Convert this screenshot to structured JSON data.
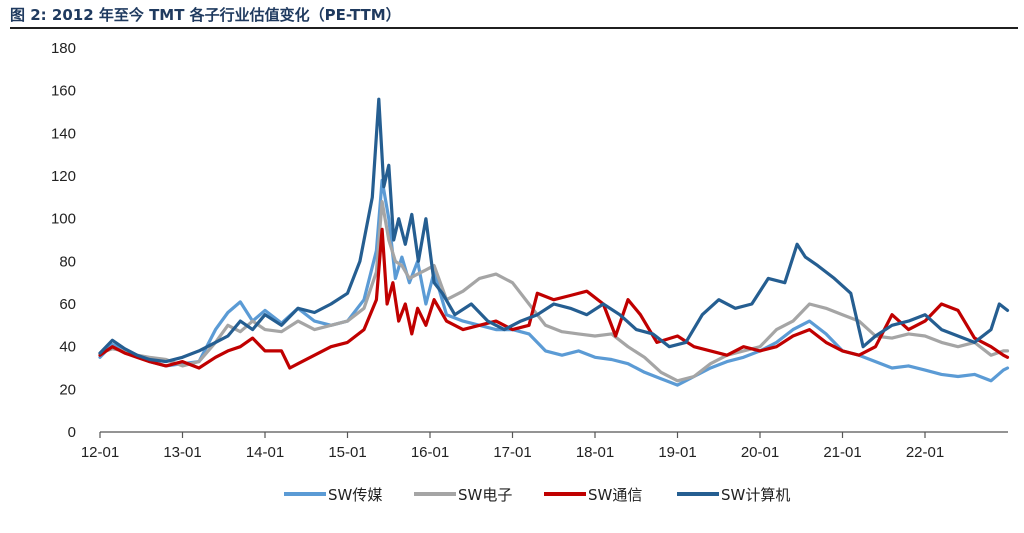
{
  "figure": {
    "title": "图 2:  2012 年至今 TMT 各子行业估值变化（PE-TTM）"
  },
  "chart_data": {
    "type": "line",
    "title": "",
    "xlabel": "",
    "ylabel": "",
    "ylim": [
      0,
      180
    ],
    "y_ticks": [
      0,
      20,
      40,
      60,
      80,
      100,
      120,
      140,
      160,
      180
    ],
    "x_ticks": [
      "12-01",
      "13-01",
      "14-01",
      "15-01",
      "16-01",
      "17-01",
      "18-01",
      "19-01",
      "20-01",
      "21-01",
      "22-01"
    ],
    "x_unit": "years since 12-01",
    "x_range": [
      0,
      11.05
    ],
    "grid": false,
    "legend_position": "bottom",
    "series": [
      {
        "name": "SW传媒",
        "color": "#5b9bd5",
        "x": [
          0,
          0.15,
          0.3,
          0.45,
          0.6,
          0.8,
          1.0,
          1.2,
          1.4,
          1.55,
          1.7,
          1.85,
          2.0,
          2.2,
          2.4,
          2.6,
          2.8,
          3.0,
          3.2,
          3.35,
          3.42,
          3.5,
          3.58,
          3.66,
          3.75,
          3.85,
          3.95,
          4.05,
          4.2,
          4.4,
          4.6,
          4.8,
          5.0,
          5.2,
          5.4,
          5.6,
          5.8,
          6.0,
          6.2,
          6.4,
          6.6,
          6.8,
          7.0,
          7.2,
          7.4,
          7.6,
          7.8,
          8.0,
          8.2,
          8.4,
          8.6,
          8.8,
          9.0,
          9.2,
          9.4,
          9.6,
          9.8,
          10.0,
          10.2,
          10.4,
          10.6,
          10.8,
          10.95,
          11.0
        ],
        "y": [
          35,
          41,
          38,
          36,
          33,
          31,
          32,
          33,
          48,
          56,
          61,
          52,
          57,
          51,
          58,
          52,
          50,
          52,
          62,
          85,
          118,
          100,
          72,
          82,
          70,
          80,
          60,
          75,
          55,
          52,
          50,
          48,
          48,
          46,
          38,
          36,
          38,
          35,
          34,
          32,
          28,
          25,
          22,
          26,
          30,
          33,
          35,
          38,
          42,
          48,
          52,
          46,
          38,
          36,
          33,
          30,
          31,
          29,
          27,
          26,
          27,
          24,
          29,
          30
        ]
      },
      {
        "name": "SW电子",
        "color": "#a5a5a5",
        "x": [
          0,
          0.15,
          0.3,
          0.45,
          0.6,
          0.8,
          1.0,
          1.2,
          1.4,
          1.55,
          1.7,
          1.85,
          2.0,
          2.2,
          2.4,
          2.6,
          2.8,
          3.0,
          3.2,
          3.35,
          3.42,
          3.5,
          3.58,
          3.66,
          3.75,
          3.85,
          3.95,
          4.05,
          4.2,
          4.4,
          4.6,
          4.8,
          5.0,
          5.2,
          5.4,
          5.6,
          5.8,
          6.0,
          6.2,
          6.4,
          6.6,
          6.8,
          7.0,
          7.2,
          7.4,
          7.6,
          7.8,
          8.0,
          8.2,
          8.4,
          8.6,
          8.8,
          9.0,
          9.2,
          9.4,
          9.6,
          9.8,
          10.0,
          10.2,
          10.4,
          10.6,
          10.8,
          10.95,
          11.0
        ],
        "y": [
          37,
          39,
          38,
          36,
          35,
          34,
          31,
          33,
          42,
          50,
          47,
          52,
          48,
          47,
          52,
          48,
          50,
          52,
          58,
          75,
          108,
          90,
          80,
          78,
          72,
          74,
          76,
          78,
          62,
          66,
          72,
          74,
          70,
          60,
          50,
          47,
          46,
          45,
          46,
          40,
          35,
          28,
          24,
          26,
          32,
          36,
          38,
          40,
          48,
          52,
          60,
          58,
          55,
          52,
          45,
          44,
          46,
          45,
          42,
          40,
          42,
          36,
          38,
          38
        ]
      },
      {
        "name": "SW通信",
        "color": "#c00000",
        "x": [
          0,
          0.15,
          0.3,
          0.45,
          0.6,
          0.8,
          1.0,
          1.2,
          1.4,
          1.55,
          1.7,
          1.85,
          2.0,
          2.2,
          2.3,
          2.4,
          2.6,
          2.8,
          3.0,
          3.2,
          3.35,
          3.42,
          3.48,
          3.55,
          3.62,
          3.7,
          3.78,
          3.85,
          3.95,
          4.05,
          4.2,
          4.4,
          4.6,
          4.8,
          5.0,
          5.2,
          5.3,
          5.5,
          5.7,
          5.9,
          6.1,
          6.25,
          6.4,
          6.55,
          6.75,
          7.0,
          7.2,
          7.4,
          7.6,
          7.8,
          8.0,
          8.2,
          8.4,
          8.6,
          8.8,
          9.0,
          9.2,
          9.4,
          9.6,
          9.8,
          10.0,
          10.2,
          10.4,
          10.6,
          10.8,
          10.95,
          11.0
        ],
        "y": [
          36,
          40,
          37,
          35,
          33,
          31,
          33,
          30,
          35,
          38,
          40,
          44,
          38,
          38,
          30,
          32,
          36,
          40,
          42,
          48,
          62,
          95,
          60,
          70,
          52,
          60,
          46,
          58,
          50,
          62,
          52,
          48,
          50,
          52,
          48,
          50,
          65,
          62,
          64,
          66,
          60,
          45,
          62,
          55,
          42,
          45,
          40,
          38,
          36,
          40,
          38,
          40,
          45,
          48,
          42,
          38,
          36,
          40,
          55,
          48,
          52,
          60,
          57,
          44,
          40,
          36,
          35
        ]
      },
      {
        "name": "SW计算机",
        "color": "#255e91",
        "x": [
          0,
          0.15,
          0.3,
          0.45,
          0.6,
          0.8,
          1.0,
          1.2,
          1.4,
          1.55,
          1.7,
          1.85,
          2.0,
          2.2,
          2.4,
          2.6,
          2.8,
          3.0,
          3.15,
          3.3,
          3.38,
          3.44,
          3.5,
          3.56,
          3.62,
          3.7,
          3.78,
          3.86,
          3.95,
          4.05,
          4.15,
          4.3,
          4.5,
          4.7,
          4.9,
          5.1,
          5.3,
          5.5,
          5.7,
          5.9,
          6.1,
          6.3,
          6.5,
          6.7,
          6.9,
          7.1,
          7.3,
          7.5,
          7.7,
          7.9,
          8.1,
          8.3,
          8.45,
          8.55,
          8.7,
          8.9,
          9.1,
          9.25,
          9.4,
          9.6,
          9.8,
          10.0,
          10.2,
          10.4,
          10.6,
          10.8,
          10.9,
          11.0
        ],
        "y": [
          37,
          43,
          39,
          36,
          34,
          33,
          35,
          38,
          42,
          45,
          52,
          48,
          55,
          50,
          58,
          56,
          60,
          65,
          80,
          110,
          156,
          115,
          125,
          90,
          100,
          88,
          102,
          80,
          100,
          70,
          65,
          55,
          60,
          52,
          48,
          52,
          55,
          60,
          58,
          55,
          60,
          55,
          48,
          46,
          40,
          42,
          55,
          62,
          58,
          60,
          72,
          70,
          88,
          82,
          78,
          72,
          65,
          40,
          45,
          50,
          52,
          55,
          48,
          45,
          42,
          48,
          60,
          57
        ]
      }
    ]
  }
}
